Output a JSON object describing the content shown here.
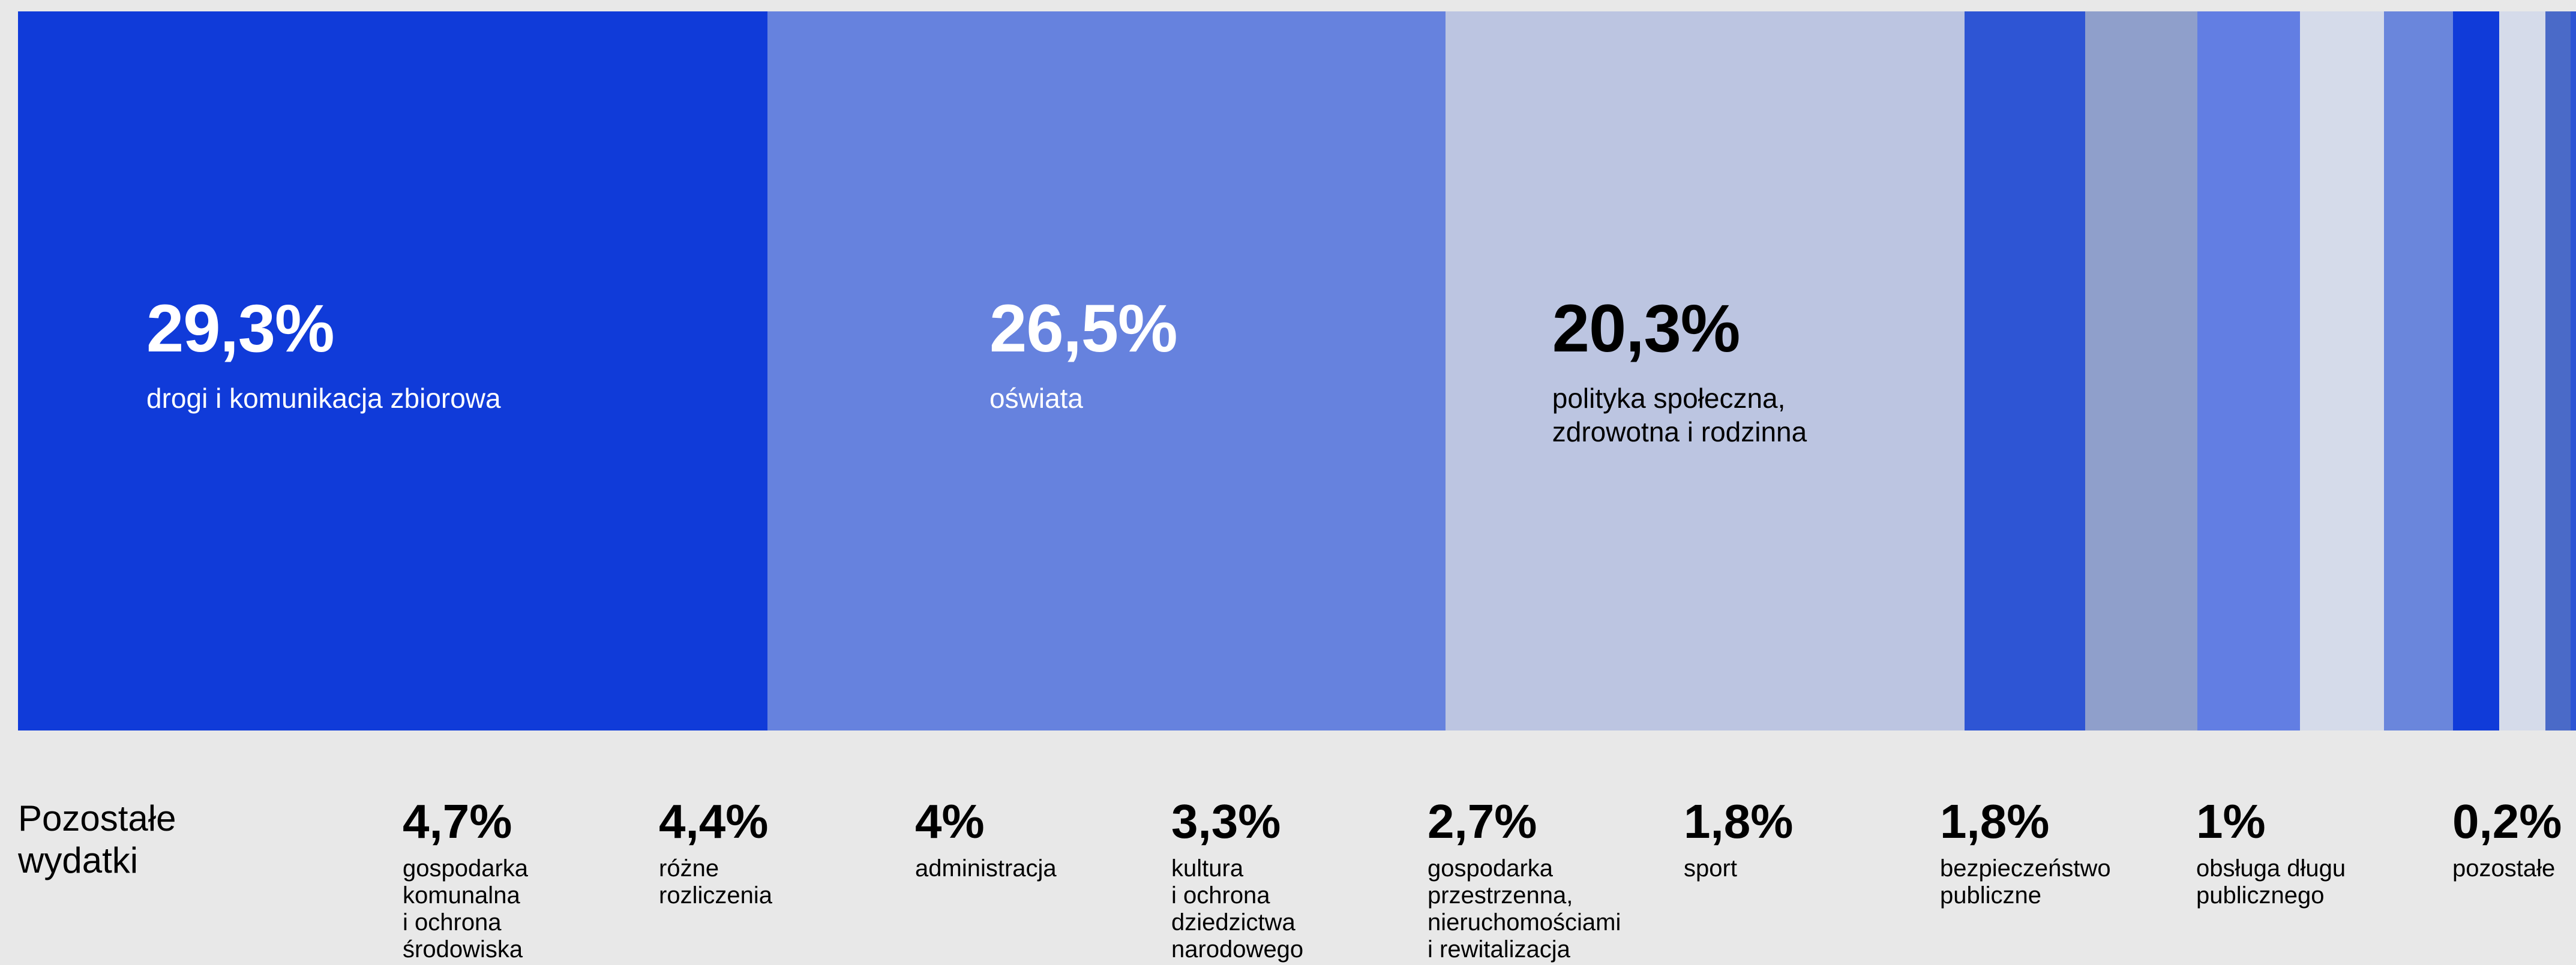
{
  "chart_data": {
    "type": "proportional-bar",
    "others_title": "Pozostałe\nwydatki",
    "categories": [
      "drogi i komunikacja zbiorowa",
      "oświata",
      "polityka społeczna,\nzdrowotna i rodzinna",
      "gospodarka\nkomunalna\ni ochrona\nśrodowiska",
      "różne\nrozliczenia",
      "administracja",
      "kultura\ni ochrona\ndziedzictwa\nnarodowego",
      "gospodarka\nprzestrzenna,\nnieruchomościami\ni rewitalizacja",
      "sport",
      "bezpieczeństwo\npubliczne",
      "obsługa długu\npublicznego",
      "pozostałe"
    ],
    "values": [
      29.3,
      26.5,
      20.3,
      4.7,
      4.4,
      4,
      3.3,
      2.7,
      1.8,
      1.8,
      1,
      0.2
    ],
    "value_labels": [
      "29,3%",
      "26,5%",
      "20,3%",
      "4,7%",
      "4,4%",
      "4%",
      "3,3%",
      "2,7%",
      "1,8%",
      "1,8%",
      "1%",
      "0,2%"
    ],
    "colors": [
      "#103bd9",
      "#6682de",
      "#bcc5e1",
      "#2e55d4",
      "#8f9fcb",
      "#627ee3",
      "#d5dbea",
      "#6a86dc",
      "#103bd9",
      "#d5dbea",
      "#4a6ac8",
      "#2e55d4"
    ]
  }
}
